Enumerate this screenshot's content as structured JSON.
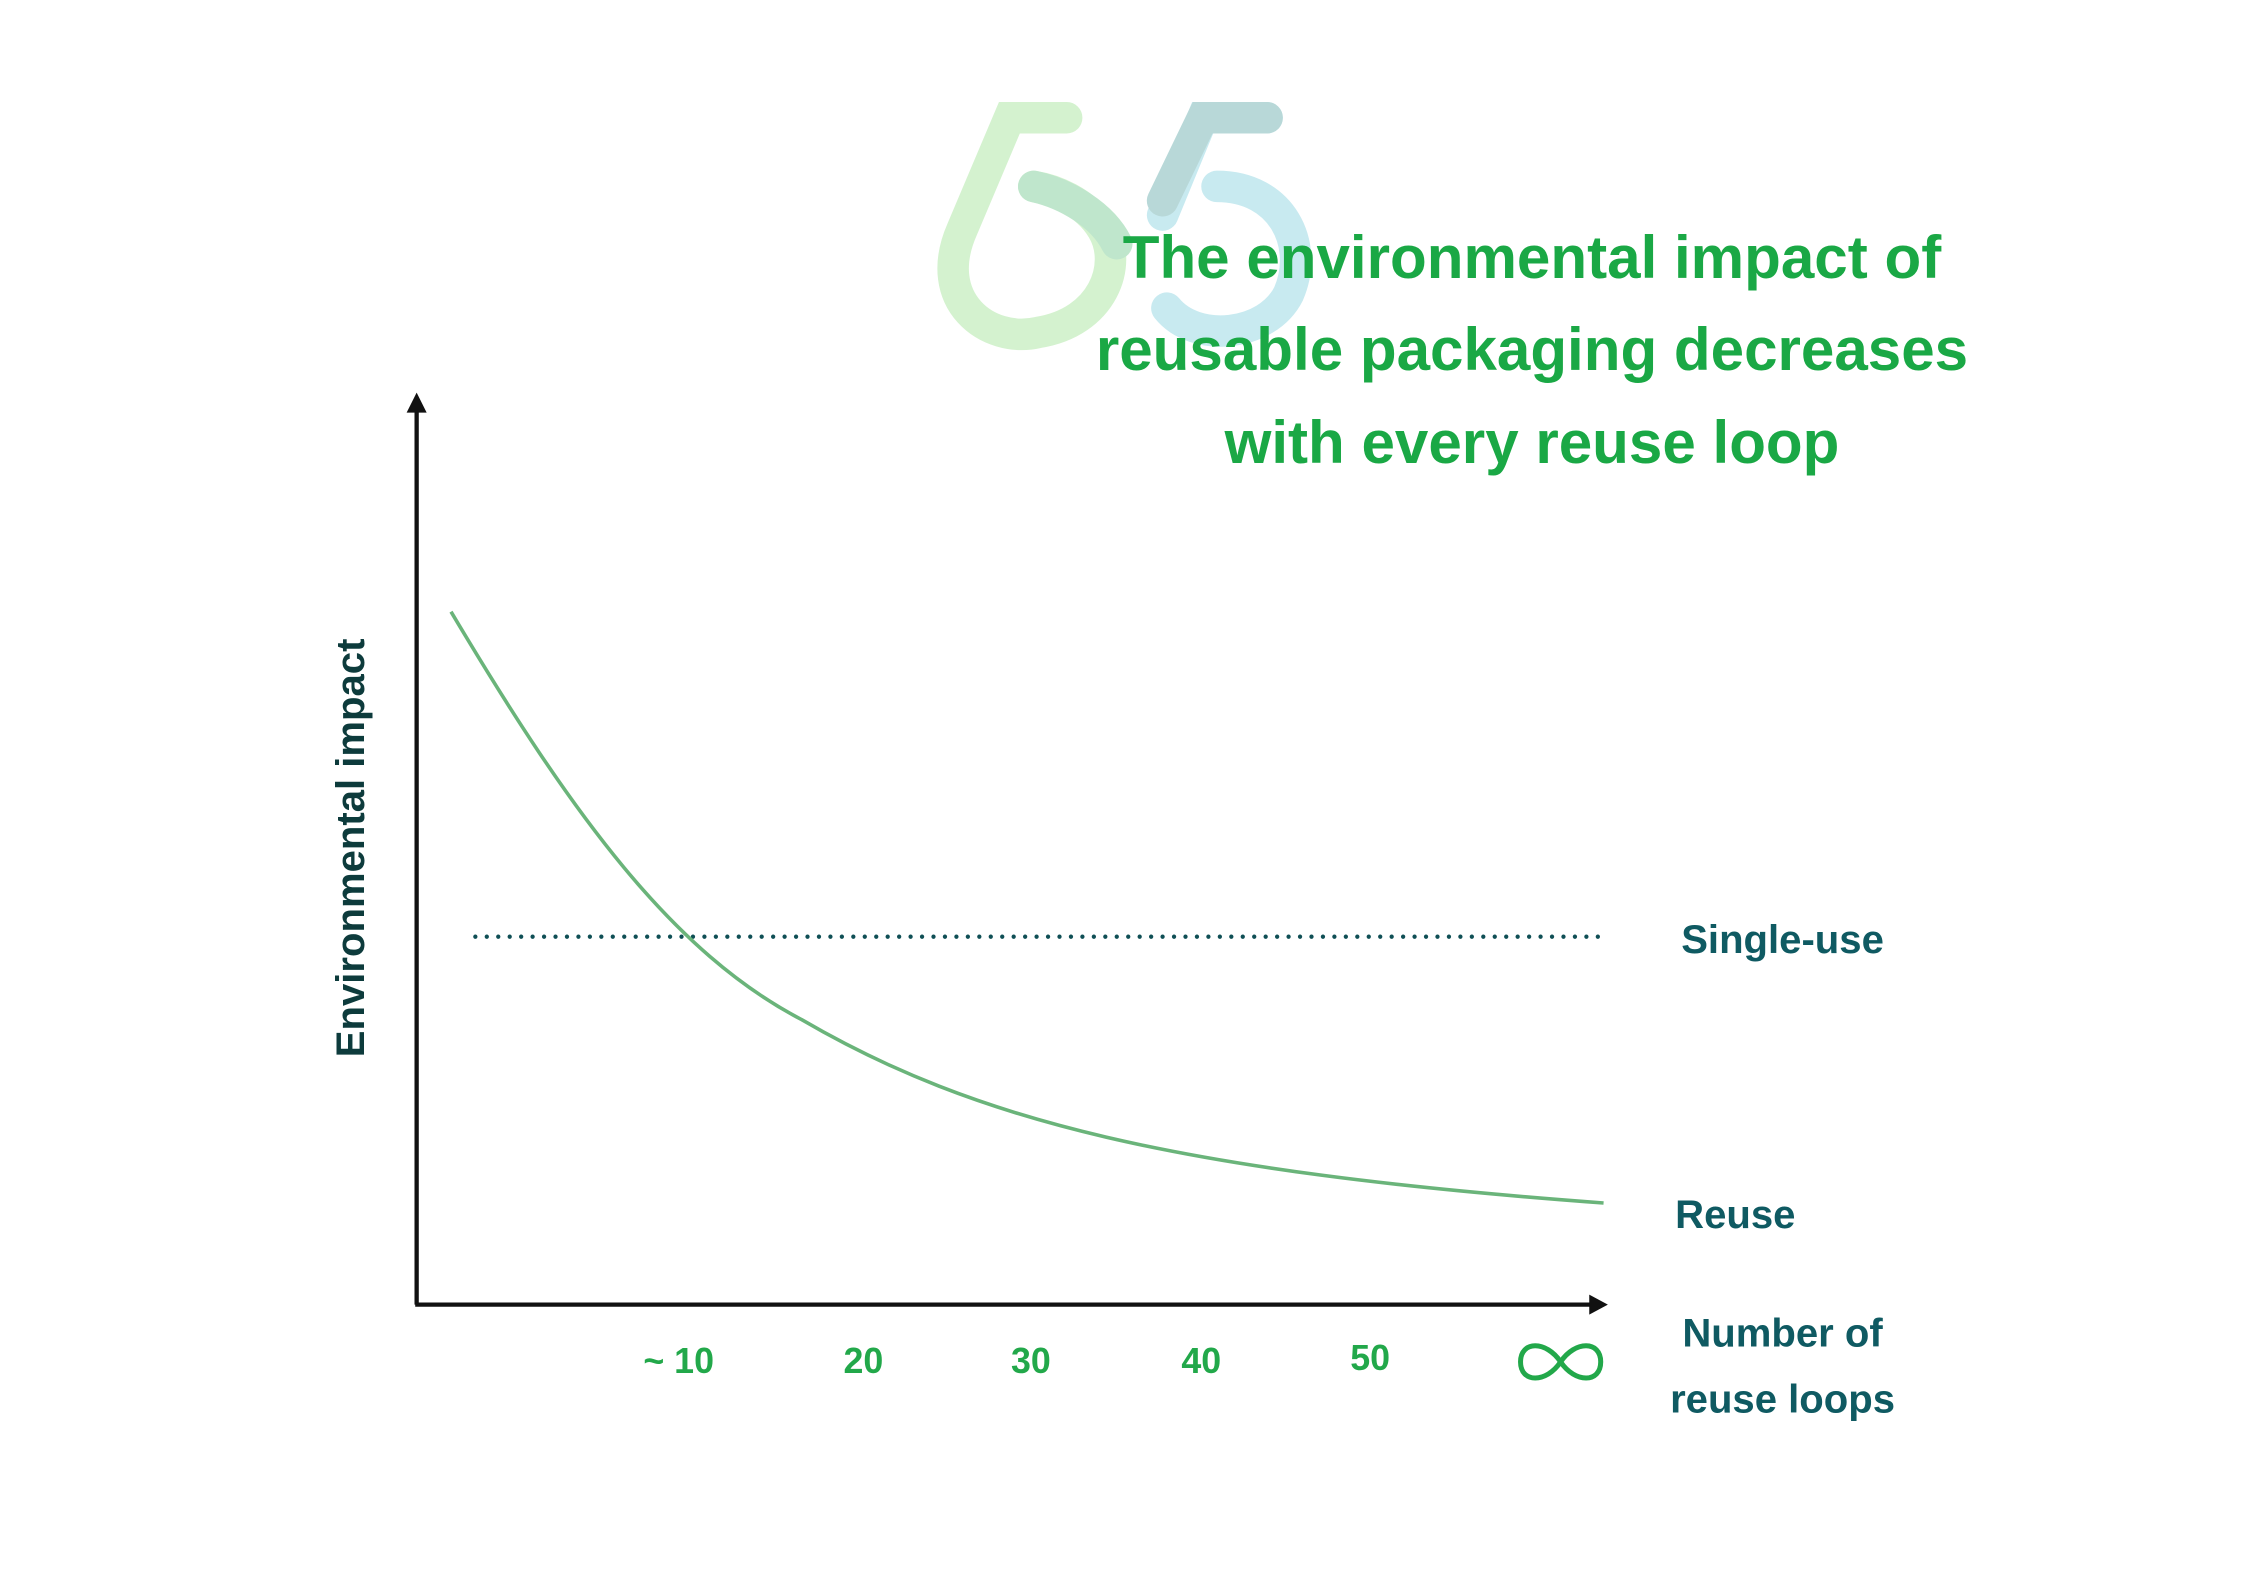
{
  "title": {
    "lines": [
      "The environmental impact of",
      "reusable packaging decreases",
      "with every reuse loop"
    ]
  },
  "y_axis_label": "Environmental impact",
  "x_axis_label": {
    "lines": [
      "Number of",
      "reuse loops"
    ]
  },
  "x_ticks": [
    "~ 10",
    "20",
    "30",
    "40",
    "50"
  ],
  "line_labels": {
    "single_use": "Single-use",
    "reuse": "Reuse"
  }
}
